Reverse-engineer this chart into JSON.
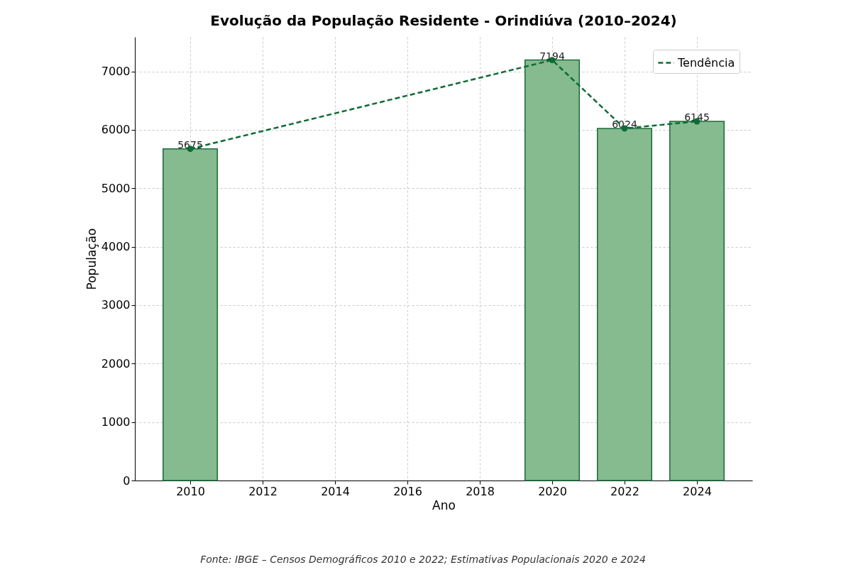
{
  "chart_data": {
    "type": "bar",
    "title": "Evolução da População Residente - Orindiúva (2010–2024)",
    "xlabel": "Ano",
    "ylabel": "População",
    "x": [
      2010,
      2020,
      2022,
      2024
    ],
    "series": [
      {
        "color": "#86bb8f",
        "values": [
          5675,
          7194,
          6024,
          6145
        ],
        "value_labels": [
          "5675",
          "7194",
          "6024",
          "6145"
        ]
      },
      {
        "type": "line",
        "name": "Tendência",
        "color": "#0e6b36",
        "values": [
          5675,
          7194,
          6024,
          6145
        ],
        "marker": "circle",
        "line_style": "dashed"
      }
    ],
    "xlim": [
      2008.47,
      2025.53
    ],
    "xticks": [
      2010,
      2012,
      2014,
      2016,
      2018,
      2020,
      2022,
      2024
    ],
    "ylim": [
      0,
      7590
    ],
    "yticks": [
      0,
      1000,
      2000,
      3000,
      4000,
      5000,
      6000,
      7000
    ],
    "grid": true,
    "legend": "top right",
    "annotations": [
      "Fonte: IBGE – Censos Demográficos 2010 e 2022; Estimativas Populacionais 2020 e 2024"
    ]
  }
}
